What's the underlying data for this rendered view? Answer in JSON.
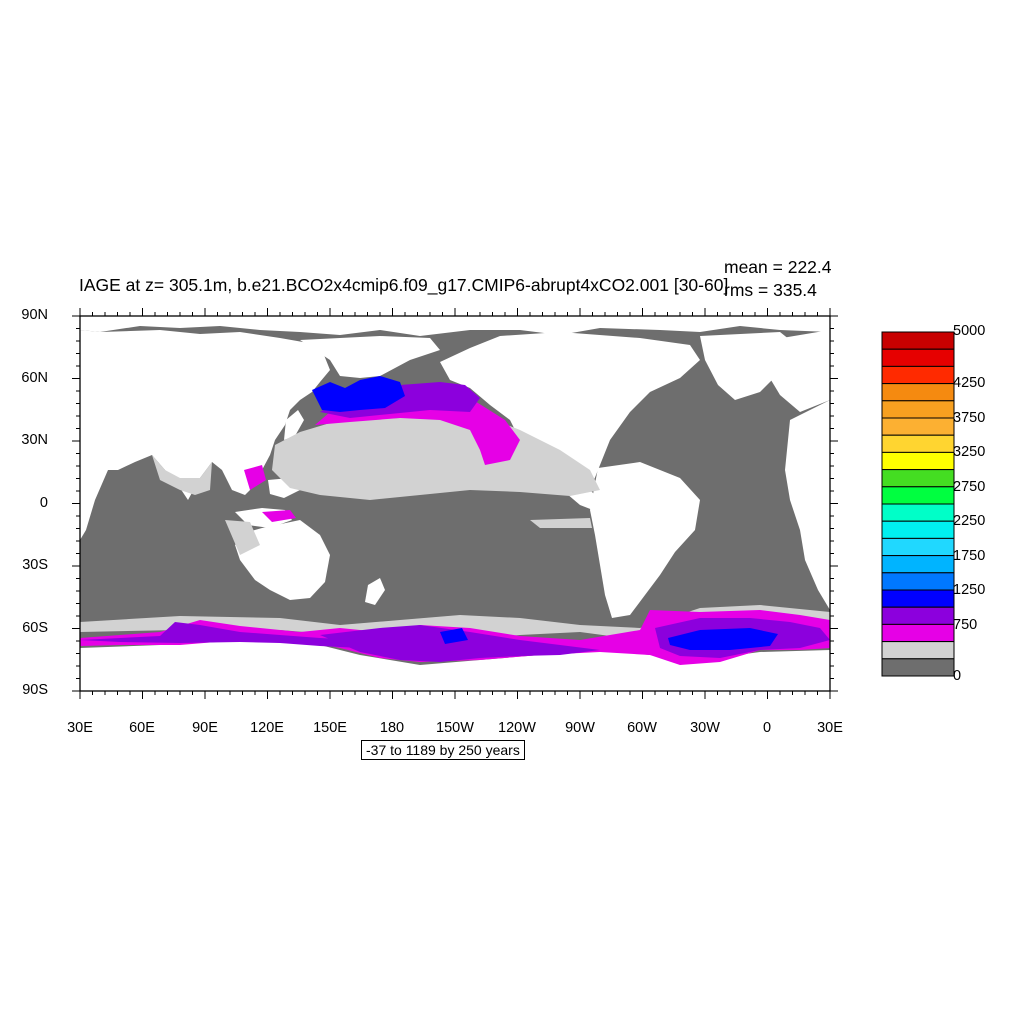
{
  "title": "IAGE at z= 305.1m, b.e21.BCO2x4cmip6.f09_g17.CMIP6-abrupt4xCO2.001 [30-60]",
  "stats": {
    "mean": "mean = 222.4",
    "rms": "rms = 335.4"
  },
  "range_label": "-37 to 1189 by 250 years",
  "lat_labels": [
    "90N",
    "60N",
    "30N",
    "0",
    "30S",
    "60S",
    "90S"
  ],
  "lon_labels": [
    "30E",
    "60E",
    "90E",
    "120E",
    "150E",
    "180",
    "150W",
    "120W",
    "90W",
    "60W",
    "30W",
    "0",
    "30E"
  ],
  "colorbar": {
    "labels": [
      "5000",
      "4250",
      "3750",
      "3250",
      "2750",
      "2250",
      "1750",
      "1250",
      "750",
      "0"
    ],
    "colors": [
      "#c80000",
      "#e60000",
      "#ff2a00",
      "#f58a10",
      "#f7a020",
      "#fcb032",
      "#ffd530",
      "#ffff00",
      "#44dd22",
      "#00ff40",
      "#00ffc8",
      "#00f0f0",
      "#20d8ff",
      "#00b4ff",
      "#0078ff",
      "#0000ff",
      "#8c00dd",
      "#e600e6",
      "#d2d2d2",
      "#6e6e6e"
    ]
  },
  "map_colors": {
    "land": "#ffffff",
    "ocean_low": "#6e6e6e",
    "light_gray": "#d2d2d2",
    "magenta": "#e600e6",
    "purple": "#8c00dd",
    "blue": "#0000ff"
  }
}
